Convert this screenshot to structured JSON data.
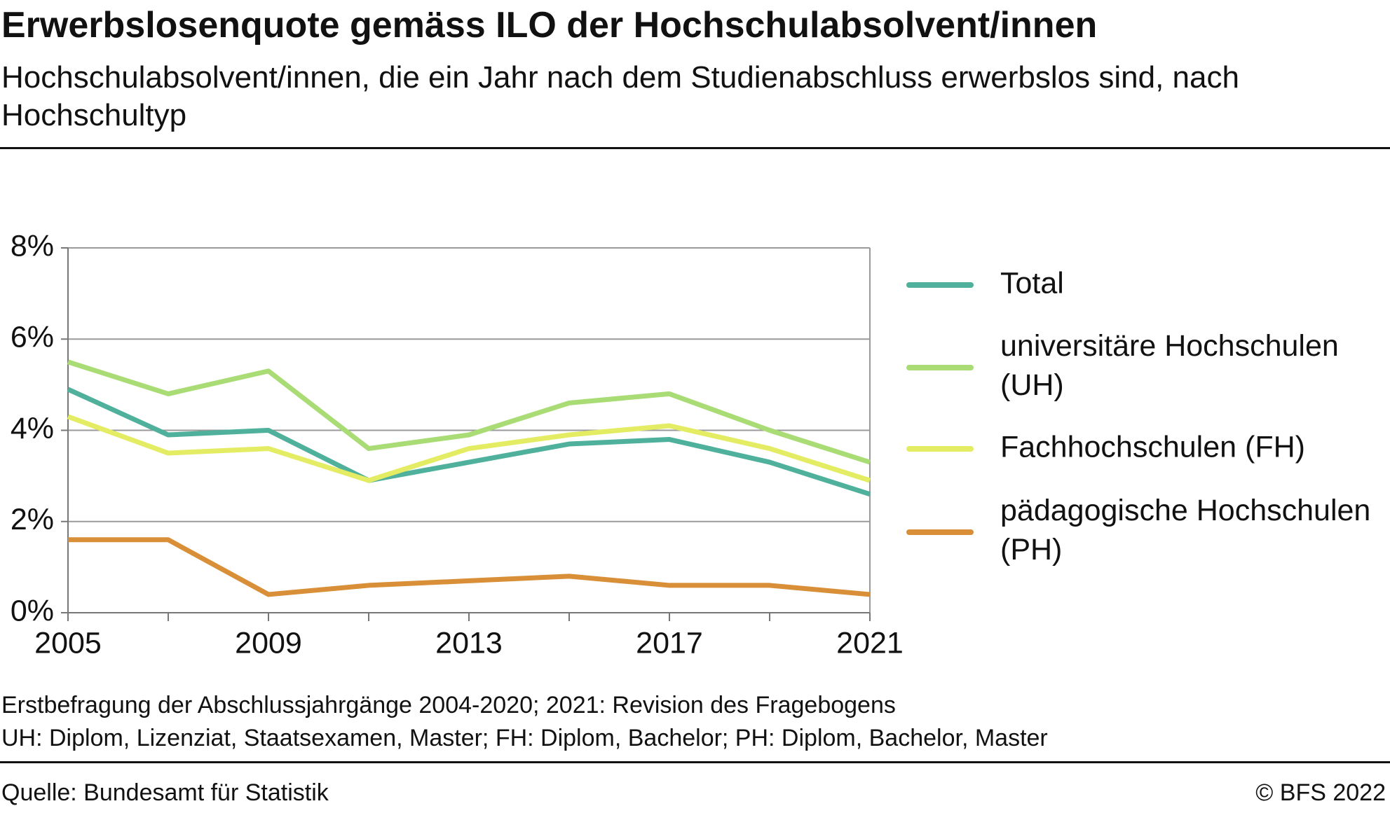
{
  "chart_data": {
    "type": "line",
    "title": "Erwerbslosenquote gemäss ILO der Hochschulabsolvent/innen",
    "subtitle": "Hochschulabsolvent/innen, die ein Jahr nach dem Studienabschluss erwerbslos sind, nach Hochschultyp",
    "x": [
      2005,
      2007,
      2009,
      2011,
      2013,
      2015,
      2017,
      2019,
      2021
    ],
    "xlim": [
      2005,
      2021
    ],
    "xticks": [
      2005,
      2009,
      2013,
      2017,
      2021
    ],
    "ylim": [
      0,
      8
    ],
    "yticks": [
      {
        "value": 0,
        "label": "0%"
      },
      {
        "value": 2,
        "label": "2%"
      },
      {
        "value": 4,
        "label": "4%"
      },
      {
        "value": 6,
        "label": "6%"
      },
      {
        "value": 8,
        "label": "8%"
      }
    ],
    "grid": true,
    "legend": "right",
    "series": [
      {
        "name": "Total",
        "color": "#4fb09c",
        "values": [
          4.9,
          3.9,
          4.0,
          2.9,
          3.3,
          3.7,
          3.8,
          3.3,
          2.6
        ]
      },
      {
        "name": "universitäre Hochschulen (UH)",
        "color": "#a9dc74",
        "values": [
          5.5,
          4.8,
          5.3,
          3.6,
          3.9,
          4.6,
          4.8,
          4.0,
          3.3
        ]
      },
      {
        "name": "Fachhochschulen (FH)",
        "color": "#e3ec62",
        "values": [
          4.3,
          3.5,
          3.6,
          2.9,
          3.6,
          3.9,
          4.1,
          3.6,
          2.9
        ]
      },
      {
        "name": "pädagogische Hochschulen (PH)",
        "color": "#d98f38",
        "values": [
          1.6,
          1.6,
          0.4,
          0.6,
          0.7,
          0.8,
          0.6,
          0.6,
          0.4
        ]
      }
    ],
    "notes": [
      "Erstbefragung der Abschlussjahrgänge 2004-2020; 2021: Revision des Fragebogens",
      "UH: Diplom, Lizenziat, Staatsexamen, Master; FH: Diplom, Bachelor; PH: Diplom, Bachelor, Master"
    ],
    "source": "Quelle: Bundesamt für Statistik",
    "copyright": "© BFS 2022"
  }
}
